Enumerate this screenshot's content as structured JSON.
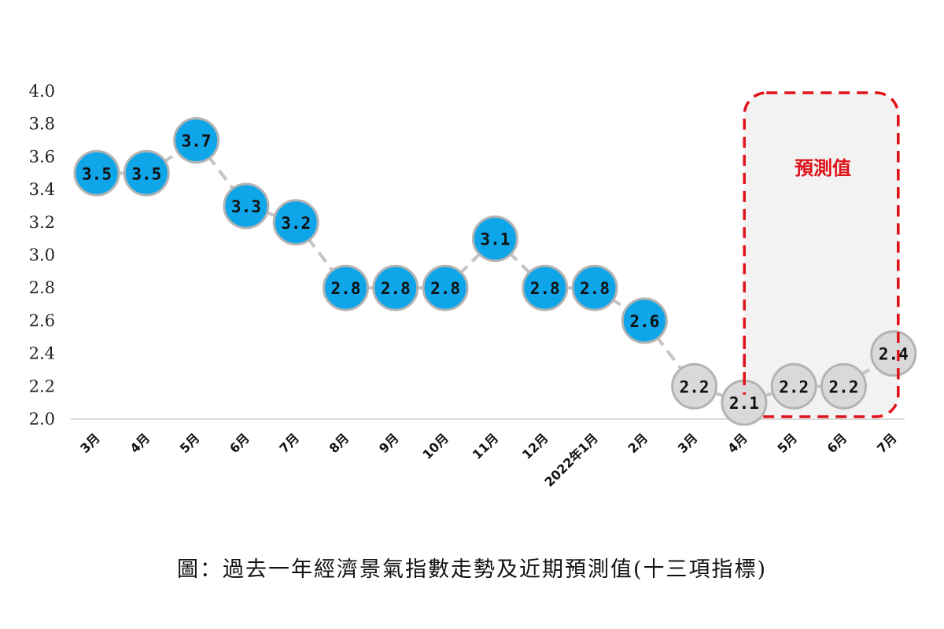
{
  "caption": "圖：過去一年經濟景氣指數走勢及近期預測值(十三項指標)",
  "chart_data": {
    "type": "line",
    "categories": [
      "3月",
      "4月",
      "5月",
      "6月",
      "7月",
      "8月",
      "9月",
      "10月",
      "11月",
      "12月",
      "2022年1月",
      "2月",
      "3月",
      "4月",
      "5月",
      "6月",
      "7月"
    ],
    "values": [
      3.5,
      3.5,
      3.7,
      3.3,
      3.2,
      2.8,
      2.8,
      2.8,
      3.1,
      2.8,
      2.8,
      2.6,
      2.2,
      2.1,
      2.2,
      2.2,
      2.4
    ],
    "labels": [
      "3.5",
      "3.5",
      "3.7",
      "3.3",
      "3.2",
      "2.8",
      "2.8",
      "2.8",
      "3.1",
      "2.8",
      "2.8",
      "2.6",
      "2.2",
      "2.1",
      "2.2",
      "2.2",
      "2.4"
    ],
    "forecast_start_index": 12,
    "forecast_box_start_index": 14,
    "forecast_label": "預測值",
    "ylim": [
      2.0,
      4.0
    ],
    "yticks": [
      2.0,
      2.2,
      2.4,
      2.6,
      2.8,
      3.0,
      3.2,
      3.4,
      3.6,
      3.8,
      4.0
    ],
    "ytick_labels": [
      "2.0",
      "2.2",
      "2.4",
      "2.6",
      "2.8",
      "3.0",
      "3.2",
      "3.4",
      "3.6",
      "3.8",
      "4.0"
    ],
    "xlabel": "",
    "ylabel": "",
    "grid": false,
    "colors": {
      "actual_marker": "#0ea5e9",
      "forecast_marker": "#d9d9d9",
      "marker_border": "#b3b3b3",
      "connector": "#c4c4c4",
      "forecast_box_border": "#e0121a",
      "forecast_box_fill": "#f2f2f2"
    }
  }
}
